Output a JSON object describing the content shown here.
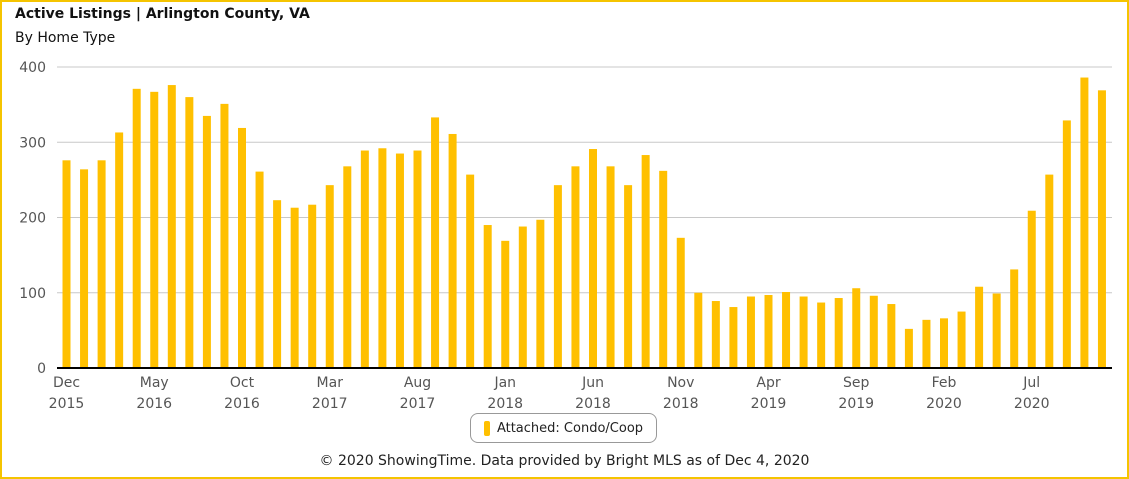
{
  "title": "Active Listings | Arlington County, VA",
  "subtitle": "By Home Type",
  "footer": "© 2020 ShowingTime. Data provided by Bright MLS as of Dec 4, 2020",
  "colors": {
    "bar": "#ffc000",
    "grid": "#c8c8c8",
    "axis": "#000000",
    "frame": "#f5c400"
  },
  "chart_data": {
    "type": "bar",
    "ylim": [
      0,
      400
    ],
    "yticks": [
      0,
      100,
      200,
      300,
      400
    ],
    "grid": true,
    "legend_position": "bottom",
    "xticks": [
      {
        "index": 0,
        "month": "Dec",
        "year": "2015"
      },
      {
        "index": 5,
        "month": "May",
        "year": "2016"
      },
      {
        "index": 10,
        "month": "Oct",
        "year": "2016"
      },
      {
        "index": 15,
        "month": "Mar",
        "year": "2017"
      },
      {
        "index": 20,
        "month": "Aug",
        "year": "2017"
      },
      {
        "index": 25,
        "month": "Jan",
        "year": "2018"
      },
      {
        "index": 30,
        "month": "Jun",
        "year": "2018"
      },
      {
        "index": 35,
        "month": "Nov",
        "year": "2018"
      },
      {
        "index": 40,
        "month": "Apr",
        "year": "2019"
      },
      {
        "index": 45,
        "month": "Sep",
        "year": "2019"
      },
      {
        "index": 50,
        "month": "Feb",
        "year": "2020"
      },
      {
        "index": 55,
        "month": "Jul",
        "year": "2020"
      }
    ],
    "series": [
      {
        "name": "Attached: Condo/Coop",
        "values": [
          276,
          264,
          276,
          313,
          371,
          367,
          376,
          360,
          335,
          351,
          319,
          261,
          223,
          213,
          217,
          243,
          268,
          289,
          292,
          285,
          289,
          333,
          311,
          257,
          190,
          169,
          188,
          197,
          243,
          268,
          291,
          268,
          243,
          283,
          262,
          173,
          100,
          89,
          81,
          95,
          97,
          101,
          95,
          87,
          93,
          106,
          96,
          85,
          52,
          64,
          66,
          75,
          108,
          99,
          131,
          209,
          257,
          329,
          386,
          369
        ]
      }
    ]
  }
}
